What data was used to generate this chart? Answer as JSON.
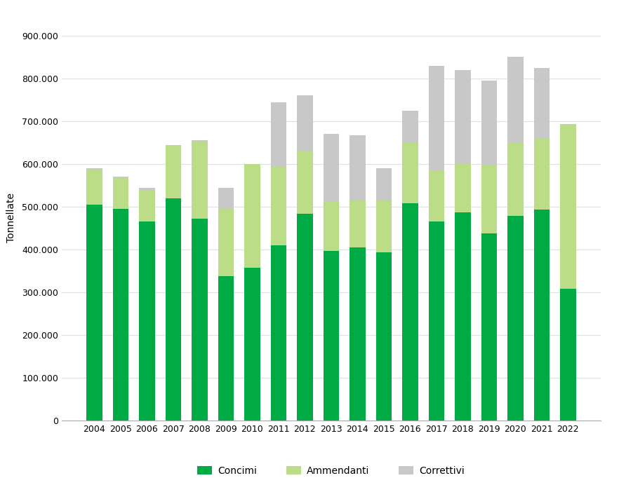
{
  "years": [
    2004,
    2005,
    2006,
    2007,
    2008,
    2009,
    2010,
    2011,
    2012,
    2013,
    2014,
    2015,
    2016,
    2017,
    2018,
    2019,
    2020,
    2021,
    2022
  ],
  "concimi": [
    505000,
    495000,
    465000,
    520000,
    473000,
    338000,
    358000,
    410000,
    483000,
    397000,
    405000,
    393000,
    508000,
    465000,
    487000,
    437000,
    478000,
    493000,
    308000
  ],
  "ammendanti": [
    82000,
    72000,
    75000,
    122000,
    180000,
    157000,
    242000,
    183000,
    148000,
    115000,
    112000,
    122000,
    142000,
    118000,
    113000,
    160000,
    172000,
    168000,
    385000
  ],
  "correttivi": [
    3000,
    3000,
    5000,
    3000,
    2000,
    50000,
    0,
    152000,
    129000,
    158000,
    150000,
    75000,
    75000,
    247000,
    220000,
    198000,
    200000,
    164000,
    0
  ],
  "concimi_color": "#00aa44",
  "ammendanti_color": "#bbdd88",
  "correttivi_color": "#c8c8c8",
  "ylabel": "Tonnellate",
  "ylim_max": 950000,
  "yticks": [
    0,
    100000,
    200000,
    300000,
    400000,
    500000,
    600000,
    700000,
    800000,
    900000
  ],
  "legend_labels": [
    "Concimi",
    "Ammendanti",
    "Correttivi"
  ],
  "background_color": "#ffffff",
  "grid_color": "#e0e0e0",
  "bar_width": 0.6,
  "figsize": [
    8.82,
    6.82
  ],
  "dpi": 100
}
